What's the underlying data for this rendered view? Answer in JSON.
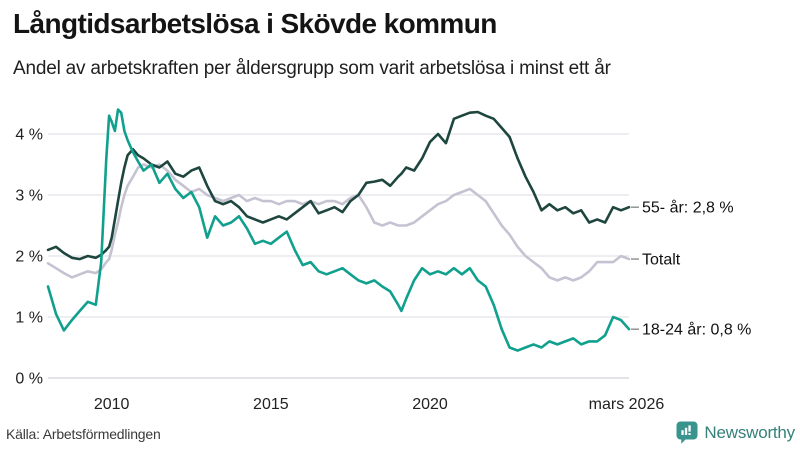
{
  "chart_data": {
    "type": "line",
    "title": "Långtidsarbetslösa i Skövde kommun",
    "subtitle": "Andel av arbetskraften per åldersgrupp som varit arbetslösa i minst ett år",
    "xlim": [
      2008.0,
      2026.25
    ],
    "ylim": [
      0,
      4.5
    ],
    "grid": "horizontal",
    "legend_position": "end-of-line labels",
    "yticks": [
      {
        "label": "0 %",
        "value": 0
      },
      {
        "label": "1 %",
        "value": 1
      },
      {
        "label": "2 %",
        "value": 2
      },
      {
        "label": "3 %",
        "value": 3
      },
      {
        "label": "4 %",
        "value": 4
      }
    ],
    "xticks": [
      {
        "label": "2010",
        "year": 2010
      },
      {
        "label": "2015",
        "year": 2015
      },
      {
        "label": "2020",
        "year": 2020
      },
      {
        "label": "mars 2026",
        "year": 2026.17
      }
    ],
    "x": [
      2008.0,
      2008.25,
      2008.5,
      2008.75,
      2009.0,
      2009.25,
      2009.5,
      2009.67,
      2009.83,
      2009.92,
      2010.0,
      2010.1,
      2010.2,
      2010.3,
      2010.4,
      2010.5,
      2010.67,
      2010.83,
      2011.0,
      2011.25,
      2011.5,
      2011.75,
      2012.0,
      2012.25,
      2012.5,
      2012.75,
      2013.0,
      2013.25,
      2013.5,
      2013.75,
      2014.0,
      2014.25,
      2014.5,
      2014.75,
      2015.0,
      2015.25,
      2015.5,
      2015.75,
      2016.0,
      2016.25,
      2016.5,
      2016.75,
      2017.0,
      2017.25,
      2017.5,
      2017.75,
      2018.0,
      2018.25,
      2018.5,
      2018.75,
      2019.0,
      2019.1,
      2019.25,
      2019.5,
      2019.75,
      2020.0,
      2020.25,
      2020.5,
      2020.75,
      2021.0,
      2021.25,
      2021.5,
      2021.75,
      2022.0,
      2022.25,
      2022.5,
      2022.75,
      2023.0,
      2023.25,
      2023.5,
      2023.75,
      2024.0,
      2024.25,
      2024.5,
      2024.75,
      2025.0,
      2025.25,
      2025.5,
      2025.75,
      2026.0,
      2026.25
    ],
    "series": [
      {
        "name": "Totalt",
        "end_label": "Totalt",
        "end_value": 1.95,
        "color": "#c5c3d2",
        "values": [
          1.88,
          1.8,
          1.72,
          1.65,
          1.7,
          1.75,
          1.72,
          1.78,
          1.9,
          1.95,
          2.1,
          2.35,
          2.55,
          2.8,
          3.0,
          3.15,
          3.3,
          3.45,
          3.5,
          3.45,
          3.5,
          3.4,
          3.25,
          3.15,
          3.05,
          3.1,
          3.0,
          2.95,
          2.9,
          2.95,
          3.0,
          2.9,
          2.95,
          2.9,
          2.9,
          2.85,
          2.9,
          2.9,
          2.85,
          2.9,
          2.85,
          2.9,
          2.9,
          2.85,
          2.95,
          3.0,
          2.8,
          2.55,
          2.5,
          2.55,
          2.5,
          2.5,
          2.5,
          2.55,
          2.65,
          2.75,
          2.85,
          2.9,
          3.0,
          3.05,
          3.1,
          3.0,
          2.9,
          2.7,
          2.5,
          2.35,
          2.15,
          2.0,
          1.9,
          1.8,
          1.65,
          1.6,
          1.65,
          1.6,
          1.65,
          1.75,
          1.9,
          1.9,
          1.9,
          2.0,
          1.95
        ]
      },
      {
        "name": "55- år",
        "end_label": "55- år: 2,8 %",
        "end_value": 2.8,
        "color": "#1e463f",
        "values": [
          2.1,
          2.15,
          2.05,
          1.97,
          1.95,
          2.0,
          1.97,
          2.02,
          2.1,
          2.15,
          2.3,
          2.6,
          2.9,
          3.2,
          3.45,
          3.65,
          3.75,
          3.65,
          3.6,
          3.5,
          3.45,
          3.55,
          3.35,
          3.3,
          3.4,
          3.45,
          3.15,
          2.9,
          2.85,
          2.9,
          2.8,
          2.65,
          2.6,
          2.55,
          2.6,
          2.65,
          2.6,
          2.7,
          2.8,
          2.9,
          2.7,
          2.75,
          2.8,
          2.72,
          2.9,
          3.0,
          3.2,
          3.22,
          3.25,
          3.15,
          3.3,
          3.35,
          3.45,
          3.4,
          3.6,
          3.87,
          4.0,
          3.85,
          4.25,
          4.3,
          4.35,
          4.36,
          4.3,
          4.25,
          4.1,
          3.95,
          3.6,
          3.3,
          3.05,
          2.75,
          2.85,
          2.75,
          2.8,
          2.7,
          2.75,
          2.55,
          2.6,
          2.55,
          2.8,
          2.75,
          2.8
        ]
      },
      {
        "name": "18-24 år",
        "end_label": "18-24 år: 0,8 %",
        "end_value": 0.8,
        "color": "#10a08d",
        "values": [
          1.5,
          1.05,
          0.78,
          0.95,
          1.1,
          1.25,
          1.2,
          1.9,
          3.6,
          4.3,
          4.2,
          4.05,
          4.4,
          4.35,
          4.05,
          3.9,
          3.7,
          3.55,
          3.4,
          3.5,
          3.2,
          3.35,
          3.1,
          2.95,
          3.05,
          2.8,
          2.3,
          2.65,
          2.5,
          2.55,
          2.65,
          2.45,
          2.2,
          2.25,
          2.2,
          2.3,
          2.4,
          2.1,
          1.85,
          1.9,
          1.75,
          1.7,
          1.75,
          1.8,
          1.7,
          1.6,
          1.55,
          1.6,
          1.5,
          1.42,
          1.2,
          1.1,
          1.3,
          1.6,
          1.8,
          1.7,
          1.75,
          1.7,
          1.8,
          1.7,
          1.8,
          1.6,
          1.5,
          1.2,
          0.8,
          0.5,
          0.45,
          0.5,
          0.55,
          0.5,
          0.6,
          0.55,
          0.6,
          0.65,
          0.55,
          0.6,
          0.6,
          0.7,
          1.0,
          0.95,
          0.8
        ]
      }
    ]
  },
  "footer": {
    "source": "Källa: Arbetsförmedlingen",
    "brand": "Newsworthy"
  },
  "colors": {
    "grid": "#e4e3ea",
    "zero_line": "#d2d1d9",
    "axis_text": "#222222",
    "end_label_text": "#111111",
    "end_label_dash": "#8c8c8c",
    "brand_teal": "#3a948e",
    "brand_text": "#35807a"
  }
}
